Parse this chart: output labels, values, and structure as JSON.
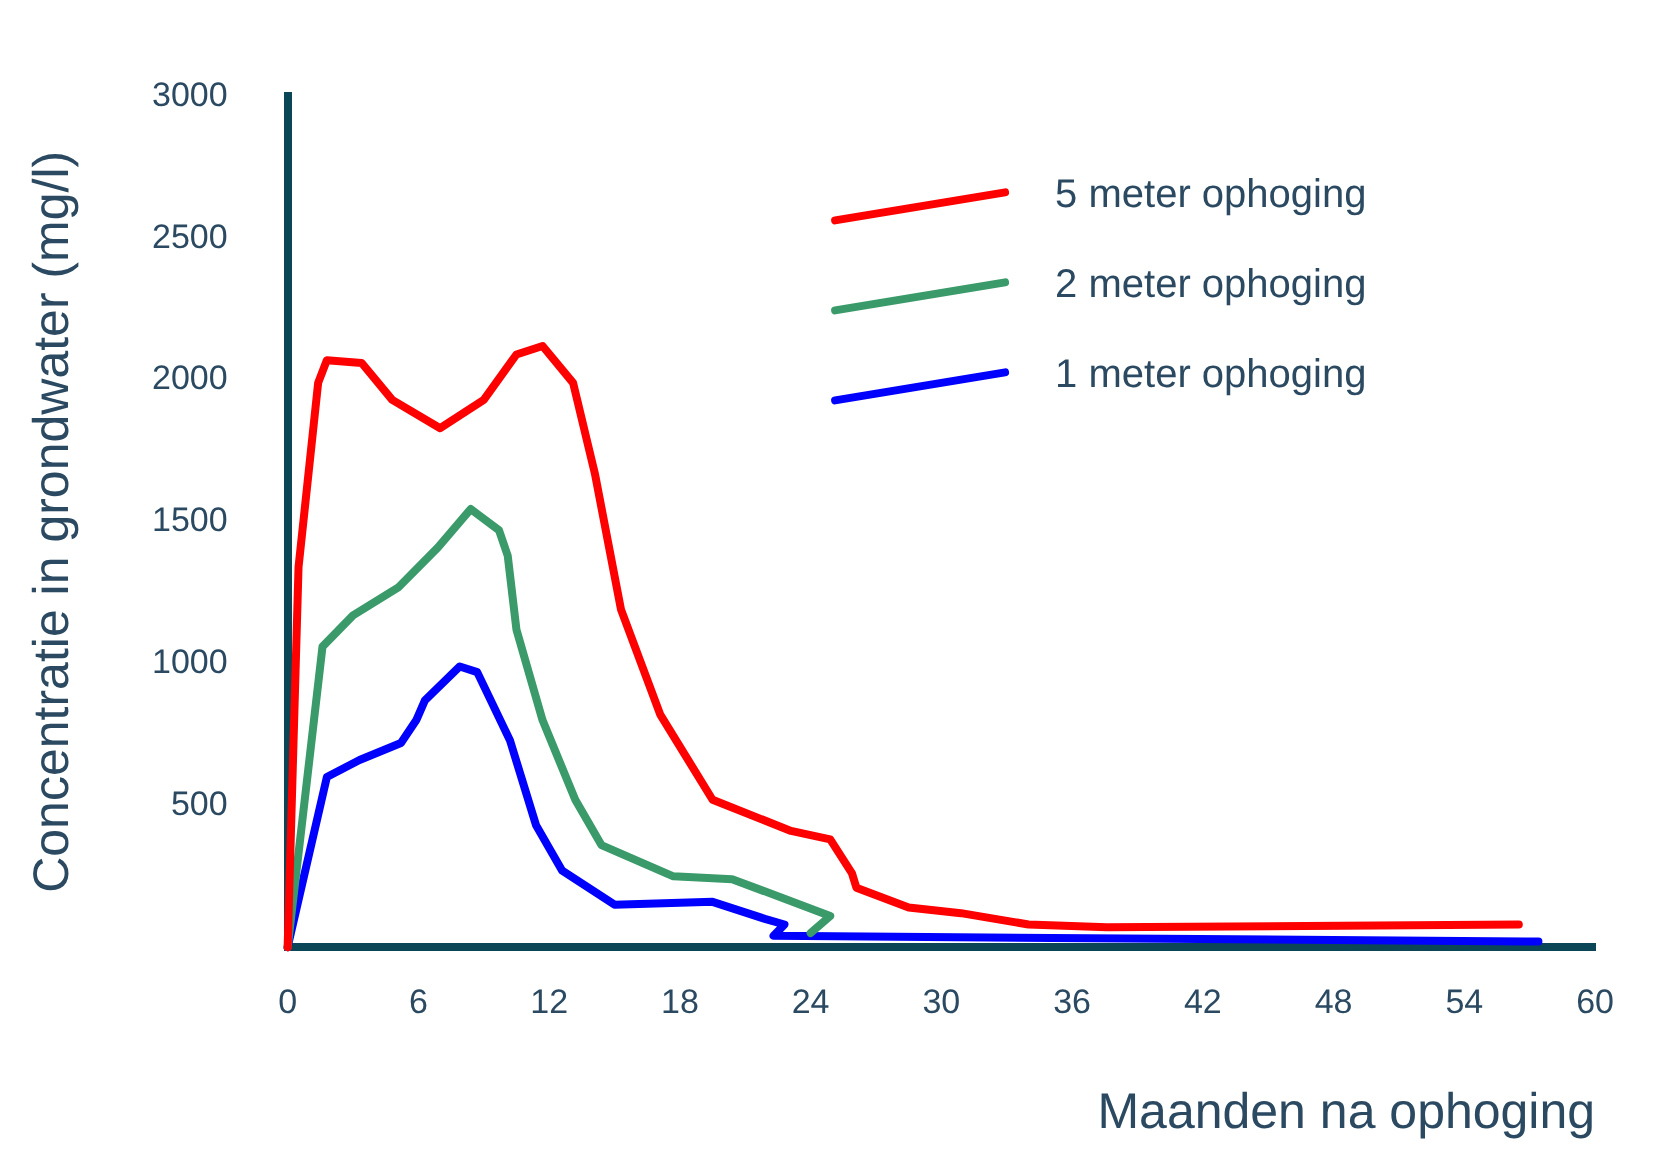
{
  "chart_data": {
    "type": "line",
    "xlabel": "Maanden na ophoging",
    "ylabel": "Concentratie in grondwater (mg/l)",
    "xlim": [
      0,
      60
    ],
    "xticks": [
      0,
      6,
      12,
      18,
      24,
      30,
      36,
      42,
      48,
      54,
      60
    ],
    "ylim": [
      0,
      3000
    ],
    "yticks": [
      500,
      1000,
      1500,
      2000,
      2500,
      3000
    ],
    "grid": false,
    "legend": "top right",
    "marker": "none",
    "line_style": "solid",
    "series": [
      {
        "name": "5 meter ophoging",
        "color": "#ff0000",
        "x": [
          0,
          0.5,
          1.4,
          1.8,
          3.4,
          4.8,
          7.0,
          9.0,
          10.5,
          11.7,
          13.1,
          14.1,
          15.3,
          17.1,
          19.5,
          23.1,
          24.9,
          25.9,
          26.1,
          28.5,
          30.9,
          34,
          37.6,
          56.5
        ],
        "values": [
          0,
          1340,
          1990,
          2070,
          2060,
          1930,
          1830,
          1930,
          2090,
          2120,
          1990,
          1670,
          1190,
          820,
          520,
          410,
          380,
          260,
          210,
          140,
          120,
          80,
          70,
          80
        ]
      },
      {
        "name": "2 meter ophoging",
        "color": "#3a9a6a",
        "x": [
          0,
          1.6,
          3.0,
          5.1,
          6.9,
          8.4,
          9.7,
          10.1,
          10.5,
          11.7,
          13.2,
          14.4,
          17.7,
          20.4,
          24.9,
          24.0
        ],
        "values": [
          0,
          1060,
          1170,
          1270,
          1410,
          1545,
          1470,
          1380,
          1120,
          800,
          520,
          360,
          250,
          240,
          110,
          50
        ]
      },
      {
        "name": "1 meter ophoging",
        "color": "#0000ff",
        "x": [
          0,
          1.8,
          3.3,
          5.2,
          5.9,
          6.3,
          7.9,
          8.7,
          10.2,
          11.4,
          12.6,
          15,
          19.5,
          21.9,
          22.8,
          22.3,
          57.4
        ],
        "values": [
          0,
          600,
          660,
          720,
          800,
          870,
          990,
          970,
          730,
          430,
          270,
          150,
          160,
          100,
          80,
          40,
          20
        ]
      }
    ]
  }
}
